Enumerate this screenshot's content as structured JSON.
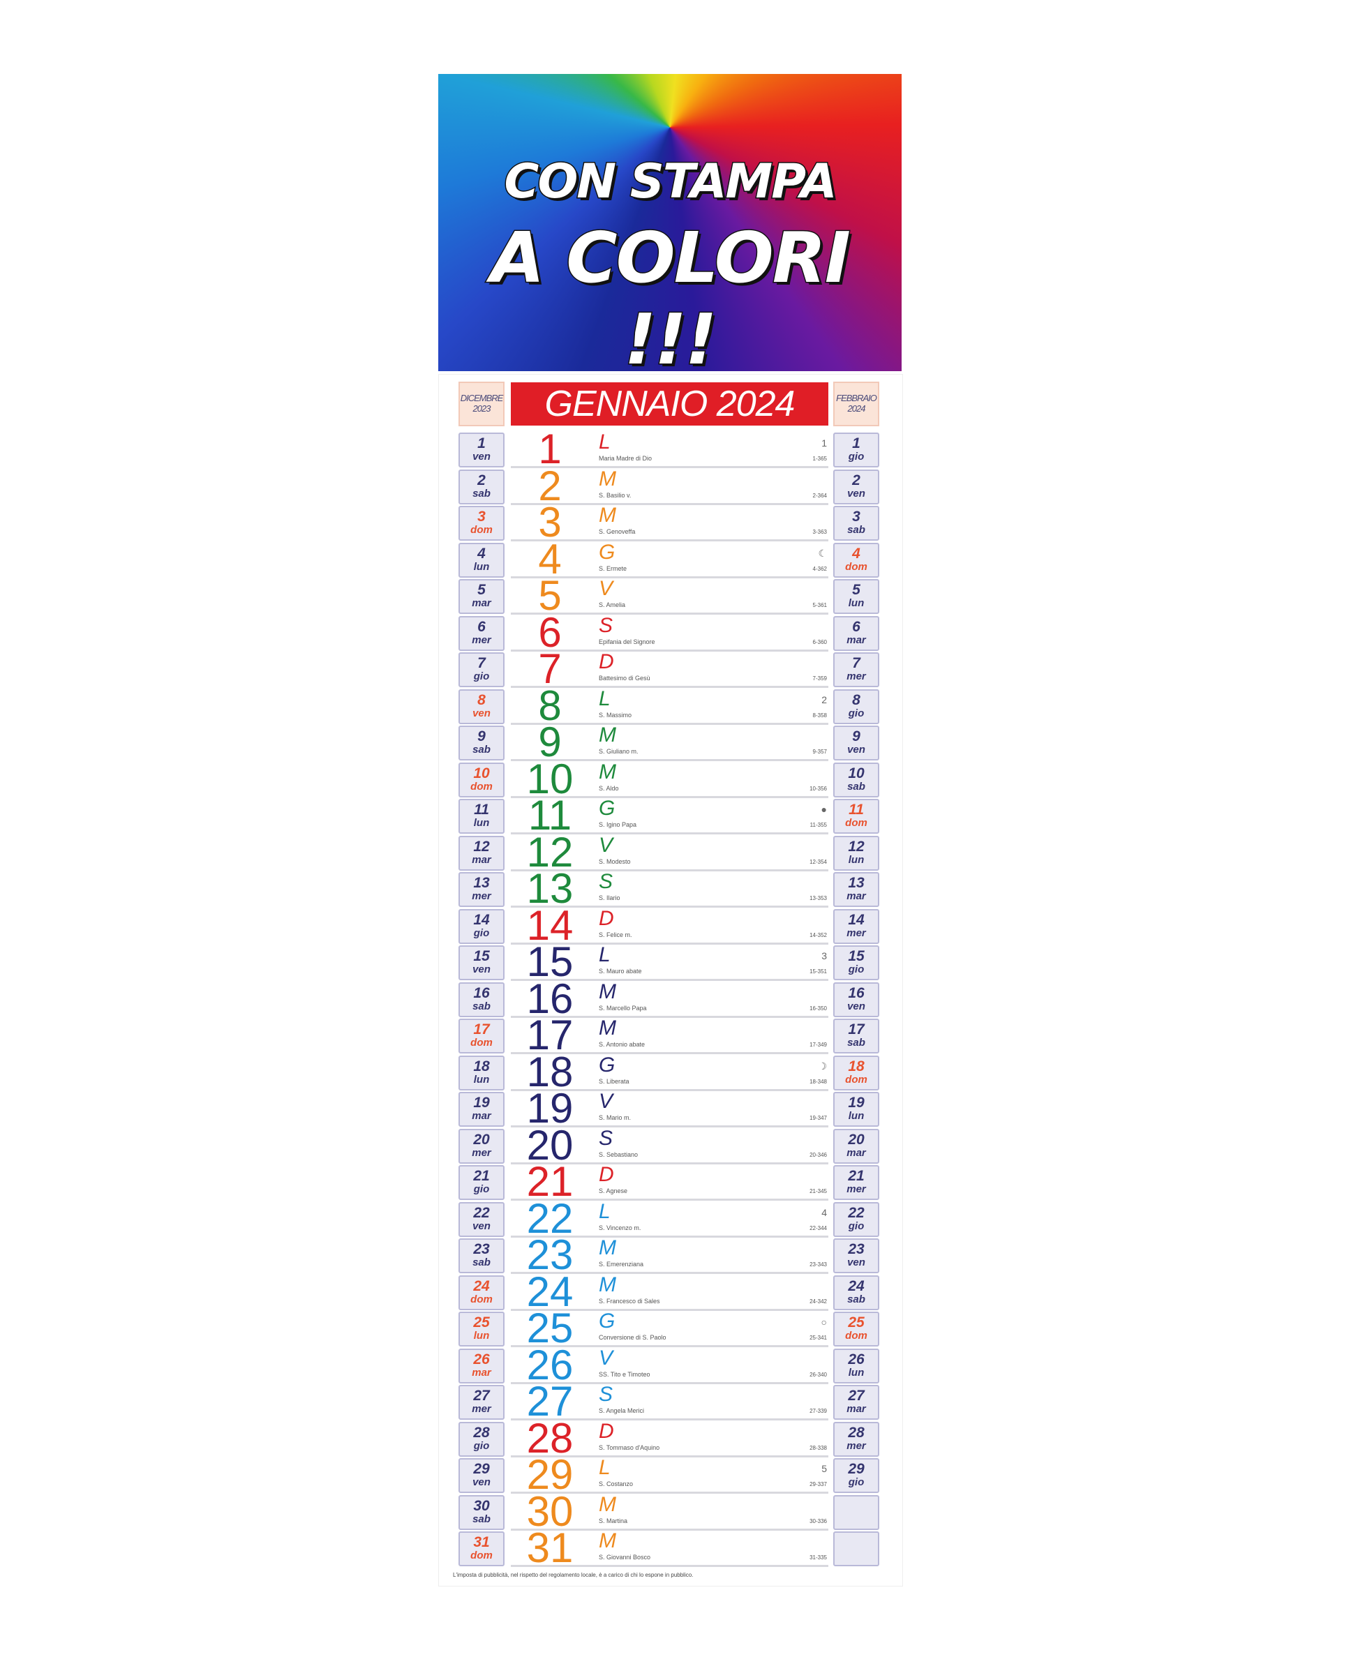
{
  "banner": {
    "line1": "CON STAMPA",
    "line2": "A COLORI !!!"
  },
  "calendar": {
    "title": "GENNAIO 2024",
    "prev_month": {
      "name": "DICEMBRE",
      "year": "2023"
    },
    "next_month": {
      "name": "FEBBRAIO",
      "year": "2024"
    },
    "colors": {
      "red": "#dc2228",
      "orange": "#ee8a1e",
      "green": "#1e8a3c",
      "navy": "#26266c",
      "blue": "#1e90d8"
    },
    "days": [
      {
        "n": "1",
        "l": "L",
        "s": "Maria Madre di Dio",
        "c": "1-365",
        "m": "1",
        "col": "red"
      },
      {
        "n": "2",
        "l": "M",
        "s": "S. Basilio v.",
        "c": "2-364",
        "m": "",
        "col": "orange"
      },
      {
        "n": "3",
        "l": "M",
        "s": "S. Genoveffa",
        "c": "3-363",
        "m": "",
        "col": "orange"
      },
      {
        "n": "4",
        "l": "G",
        "s": "S. Ermete",
        "c": "4-362",
        "m": "☾",
        "col": "orange"
      },
      {
        "n": "5",
        "l": "V",
        "s": "S. Amelia",
        "c": "5-361",
        "m": "",
        "col": "orange"
      },
      {
        "n": "6",
        "l": "S",
        "s": "Epifania del Signore",
        "c": "6-360",
        "m": "",
        "col": "red"
      },
      {
        "n": "7",
        "l": "D",
        "s": "Battesimo di Gesù",
        "c": "7-359",
        "m": "",
        "col": "red"
      },
      {
        "n": "8",
        "l": "L",
        "s": "S. Massimo",
        "c": "8-358",
        "m": "2",
        "col": "green"
      },
      {
        "n": "9",
        "l": "M",
        "s": "S. Giuliano m.",
        "c": "9-357",
        "m": "",
        "col": "green"
      },
      {
        "n": "10",
        "l": "M",
        "s": "S. Aldo",
        "c": "10-356",
        "m": "",
        "col": "green"
      },
      {
        "n": "11",
        "l": "G",
        "s": "S. Igino Papa",
        "c": "11-355",
        "m": "●",
        "col": "green"
      },
      {
        "n": "12",
        "l": "V",
        "s": "S. Modesto",
        "c": "12-354",
        "m": "",
        "col": "green"
      },
      {
        "n": "13",
        "l": "S",
        "s": "S. Ilario",
        "c": "13-353",
        "m": "",
        "col": "green"
      },
      {
        "n": "14",
        "l": "D",
        "s": "S. Felice m.",
        "c": "14-352",
        "m": "",
        "col": "red"
      },
      {
        "n": "15",
        "l": "L",
        "s": "S. Mauro abate",
        "c": "15-351",
        "m": "3",
        "col": "navy"
      },
      {
        "n": "16",
        "l": "M",
        "s": "S. Marcello Papa",
        "c": "16-350",
        "m": "",
        "col": "navy"
      },
      {
        "n": "17",
        "l": "M",
        "s": "S. Antonio abate",
        "c": "17-349",
        "m": "",
        "col": "navy"
      },
      {
        "n": "18",
        "l": "G",
        "s": "S. Liberata",
        "c": "18-348",
        "m": "☽",
        "col": "navy"
      },
      {
        "n": "19",
        "l": "V",
        "s": "S. Mario m.",
        "c": "19-347",
        "m": "",
        "col": "navy"
      },
      {
        "n": "20",
        "l": "S",
        "s": "S. Sebastiano",
        "c": "20-346",
        "m": "",
        "col": "navy"
      },
      {
        "n": "21",
        "l": "D",
        "s": "S. Agnese",
        "c": "21-345",
        "m": "",
        "col": "red"
      },
      {
        "n": "22",
        "l": "L",
        "s": "S. Vincenzo m.",
        "c": "22-344",
        "m": "4",
        "col": "blue"
      },
      {
        "n": "23",
        "l": "M",
        "s": "S. Emerenziana",
        "c": "23-343",
        "m": "",
        "col": "blue"
      },
      {
        "n": "24",
        "l": "M",
        "s": "S. Francesco di Sales",
        "c": "24-342",
        "m": "",
        "col": "blue"
      },
      {
        "n": "25",
        "l": "G",
        "s": "Conversione di S. Paolo",
        "c": "25-341",
        "m": "○",
        "col": "blue"
      },
      {
        "n": "26",
        "l": "V",
        "s": "SS. Tito e Timoteo",
        "c": "26-340",
        "m": "",
        "col": "blue"
      },
      {
        "n": "27",
        "l": "S",
        "s": "S. Angela Merici",
        "c": "27-339",
        "m": "",
        "col": "blue"
      },
      {
        "n": "28",
        "l": "D",
        "s": "S. Tommaso d'Aquino",
        "c": "28-338",
        "m": "",
        "col": "red"
      },
      {
        "n": "29",
        "l": "L",
        "s": "S. Costanzo",
        "c": "29-337",
        "m": "5",
        "col": "orange"
      },
      {
        "n": "30",
        "l": "M",
        "s": "S. Martina",
        "c": "30-336",
        "m": "",
        "col": "orange"
      },
      {
        "n": "31",
        "l": "M",
        "s": "S. Giovanni Bosco",
        "c": "31-335",
        "m": "",
        "col": "orange"
      }
    ],
    "prev_days": [
      {
        "n": "1",
        "w": "ven"
      },
      {
        "n": "2",
        "w": "sab"
      },
      {
        "n": "3",
        "w": "dom",
        "red": true
      },
      {
        "n": "4",
        "w": "lun"
      },
      {
        "n": "5",
        "w": "mar"
      },
      {
        "n": "6",
        "w": "mer"
      },
      {
        "n": "7",
        "w": "gio"
      },
      {
        "n": "8",
        "w": "ven",
        "red": true
      },
      {
        "n": "9",
        "w": "sab"
      },
      {
        "n": "10",
        "w": "dom",
        "red": true
      },
      {
        "n": "11",
        "w": "lun"
      },
      {
        "n": "12",
        "w": "mar"
      },
      {
        "n": "13",
        "w": "mer"
      },
      {
        "n": "14",
        "w": "gio"
      },
      {
        "n": "15",
        "w": "ven"
      },
      {
        "n": "16",
        "w": "sab"
      },
      {
        "n": "17",
        "w": "dom",
        "red": true
      },
      {
        "n": "18",
        "w": "lun"
      },
      {
        "n": "19",
        "w": "mar"
      },
      {
        "n": "20",
        "w": "mer"
      },
      {
        "n": "21",
        "w": "gio"
      },
      {
        "n": "22",
        "w": "ven"
      },
      {
        "n": "23",
        "w": "sab"
      },
      {
        "n": "24",
        "w": "dom",
        "red": true
      },
      {
        "n": "25",
        "w": "lun",
        "red": true
      },
      {
        "n": "26",
        "w": "mar",
        "red": true
      },
      {
        "n": "27",
        "w": "mer"
      },
      {
        "n": "28",
        "w": "gio"
      },
      {
        "n": "29",
        "w": "ven"
      },
      {
        "n": "30",
        "w": "sab"
      },
      {
        "n": "31",
        "w": "dom",
        "red": true
      }
    ],
    "next_days": [
      {
        "n": "1",
        "w": "gio"
      },
      {
        "n": "2",
        "w": "ven"
      },
      {
        "n": "3",
        "w": "sab"
      },
      {
        "n": "4",
        "w": "dom",
        "red": true
      },
      {
        "n": "5",
        "w": "lun"
      },
      {
        "n": "6",
        "w": "mar"
      },
      {
        "n": "7",
        "w": "mer"
      },
      {
        "n": "8",
        "w": "gio"
      },
      {
        "n": "9",
        "w": "ven"
      },
      {
        "n": "10",
        "w": "sab"
      },
      {
        "n": "11",
        "w": "dom",
        "red": true
      },
      {
        "n": "12",
        "w": "lun"
      },
      {
        "n": "13",
        "w": "mar"
      },
      {
        "n": "14",
        "w": "mer"
      },
      {
        "n": "15",
        "w": "gio"
      },
      {
        "n": "16",
        "w": "ven"
      },
      {
        "n": "17",
        "w": "sab"
      },
      {
        "n": "18",
        "w": "dom",
        "red": true
      },
      {
        "n": "19",
        "w": "lun"
      },
      {
        "n": "20",
        "w": "mar"
      },
      {
        "n": "21",
        "w": "mer"
      },
      {
        "n": "22",
        "w": "gio"
      },
      {
        "n": "23",
        "w": "ven"
      },
      {
        "n": "24",
        "w": "sab"
      },
      {
        "n": "25",
        "w": "dom",
        "red": true
      },
      {
        "n": "26",
        "w": "lun"
      },
      {
        "n": "27",
        "w": "mar"
      },
      {
        "n": "28",
        "w": "mer"
      },
      {
        "n": "29",
        "w": "gio"
      },
      {
        "n": ""
      },
      {
        "n": ""
      }
    ],
    "footer": "L'imposta di pubblicità, nel rispetto del regolamento locale, è a carico di chi lo espone in pubblico."
  }
}
